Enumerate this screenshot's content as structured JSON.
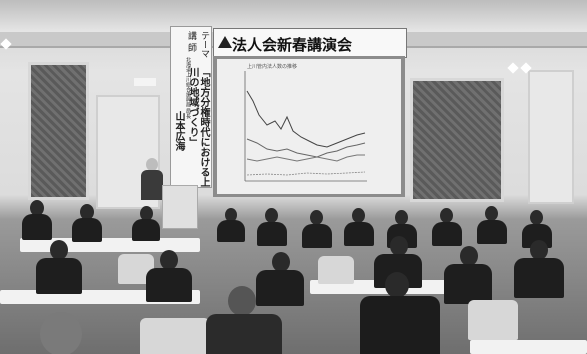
{
  "banner": {
    "label_theme": "テーマ",
    "theme": "「地方分権時代における上川の地域づくり」",
    "label_speaker": "講 師",
    "speaker_affiliation": "北海道上川総合振興局 局長",
    "speaker_name": "山本広海"
  },
  "stage": {
    "title": "法人会新春講演会",
    "slide_title": "上川管内法人数の推移"
  }
}
